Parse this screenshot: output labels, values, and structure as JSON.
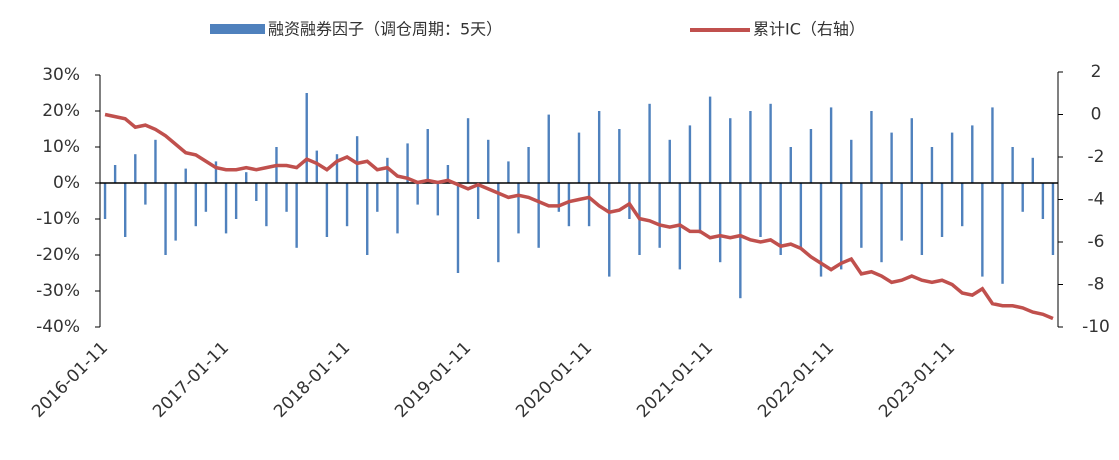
{
  "chart_data": {
    "type": "bar_line",
    "categories": [
      "2016-01-11",
      null,
      null,
      null,
      null,
      null,
      null,
      null,
      null,
      null,
      null,
      null,
      "2017-01-11",
      null,
      null,
      null,
      null,
      null,
      null,
      null,
      null,
      null,
      null,
      null,
      "2018-01-11",
      null,
      null,
      null,
      null,
      null,
      null,
      null,
      null,
      null,
      null,
      null,
      "2019-01-11",
      null,
      null,
      null,
      null,
      null,
      null,
      null,
      null,
      null,
      null,
      null,
      "2020-01-11",
      null,
      null,
      null,
      null,
      null,
      null,
      null,
      null,
      null,
      null,
      null,
      "2021-01-11",
      null,
      null,
      null,
      null,
      null,
      null,
      null,
      null,
      null,
      null,
      null,
      "2022-01-11",
      null,
      null,
      null,
      null,
      null,
      null,
      null,
      null,
      null,
      null,
      null,
      "2023-01-11",
      null,
      null,
      null,
      null,
      null,
      null,
      null,
      null,
      null,
      null
    ],
    "series": [
      {
        "name": "融资融券因子（调仓周期：5天）",
        "type": "bar",
        "axis": "y",
        "color": "#4f81bd",
        "values": [
          -10,
          5,
          -15,
          8,
          -6,
          12,
          -20,
          -16,
          4,
          -12,
          -8,
          6,
          -14,
          -10,
          3,
          -5,
          -12,
          10,
          -8,
          -18,
          25,
          9,
          -15,
          8,
          -12,
          13,
          -20,
          -8,
          7,
          -14,
          11,
          -6,
          15,
          -9,
          5,
          -25,
          18,
          -10,
          12,
          -22,
          6,
          -14,
          10,
          -18,
          19,
          -8,
          -12,
          14,
          -12,
          20,
          -26,
          15,
          -10,
          -20,
          22,
          -18,
          12,
          -24,
          16,
          -14,
          24,
          -22,
          18,
          -32,
          20,
          -15,
          22,
          -20,
          10,
          -18,
          15,
          -26,
          21,
          -24,
          12,
          -18,
          20,
          -22,
          14,
          -16,
          18,
          -20,
          10,
          -15,
          14,
          -12,
          16,
          -26,
          21,
          -28,
          10,
          -8,
          7,
          -10,
          -20
        ]
      },
      {
        "name": "累计IC（右轴）",
        "type": "line",
        "axis": "y2",
        "color": "#c0504d",
        "values": [
          0,
          -0.1,
          -0.2,
          -0.6,
          -0.5,
          -0.7,
          -1.0,
          -1.4,
          -1.8,
          -1.9,
          -2.2,
          -2.5,
          -2.6,
          -2.6,
          -2.5,
          -2.6,
          -2.5,
          -2.4,
          -2.4,
          -2.5,
          -2.1,
          -2.3,
          -2.6,
          -2.2,
          -2.0,
          -2.3,
          -2.2,
          -2.6,
          -2.5,
          -2.9,
          -3.0,
          -3.2,
          -3.1,
          -3.2,
          -3.1,
          -3.3,
          -3.5,
          -3.3,
          -3.5,
          -3.7,
          -3.9,
          -3.8,
          -3.9,
          -4.1,
          -4.3,
          -4.3,
          -4.1,
          -4.0,
          -3.9,
          -4.3,
          -4.6,
          -4.5,
          -4.2,
          -4.9,
          -5.0,
          -5.2,
          -5.3,
          -5.2,
          -5.5,
          -5.5,
          -5.8,
          -5.7,
          -5.8,
          -5.7,
          -5.9,
          -6.0,
          -5.9,
          -6.2,
          -6.1,
          -6.3,
          -6.7,
          -7.0,
          -7.3,
          -7.0,
          -6.8,
          -7.5,
          -7.4,
          -7.6,
          -7.9,
          -7.8,
          -7.6,
          -7.8,
          -7.9,
          -7.8,
          -8.0,
          -8.4,
          -8.5,
          -8.2,
          -8.9,
          -9.0,
          -9.0,
          -9.1,
          -9.3,
          -9.4,
          -9.6
        ]
      }
    ],
    "ylim": [
      -40,
      30
    ],
    "yticks": [
      {
        "value": -40,
        "label": "-40%"
      },
      {
        "value": -30,
        "label": "-30%"
      },
      {
        "value": -20,
        "label": "-20%"
      },
      {
        "value": -10,
        "label": "-10%"
      },
      {
        "value": 0,
        "label": "0%"
      },
      {
        "value": 10,
        "label": "10%"
      },
      {
        "value": 20,
        "label": "20%"
      },
      {
        "value": 30,
        "label": "30%"
      }
    ],
    "y2lim": [
      -10,
      2
    ],
    "y2ticks": [
      -10,
      -8,
      -6,
      -4,
      -2,
      0,
      2
    ],
    "grid": false,
    "legend": "top"
  }
}
